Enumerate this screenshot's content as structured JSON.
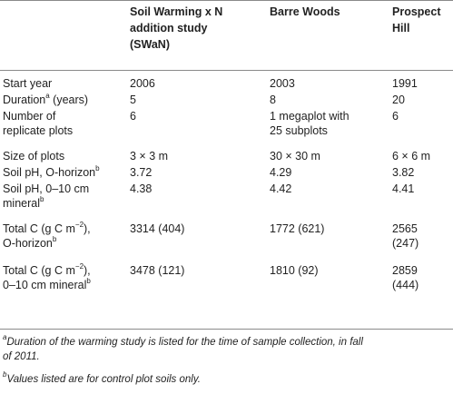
{
  "headers": {
    "col0": "",
    "col1_line1": "Soil Warming x N",
    "col1_line2": "addition study",
    "col1_line3": "(SWaN)",
    "col2": "Barre Woods",
    "col3_line1": "Prospect",
    "col3_line2": "Hill"
  },
  "rows": {
    "start_year": {
      "label": "Start year",
      "swan": "2006",
      "barre": "2003",
      "prospect": "1991"
    },
    "duration": {
      "label": "Duration",
      "label_sup": "a",
      "label_suffix": " (years)",
      "swan": "5",
      "barre": "8",
      "prospect": "20"
    },
    "replicates": {
      "label_line1": "Number of",
      "label_line2": "replicate plots",
      "swan": "6",
      "barre_line1": "1 megaplot with",
      "barre_line2": "25 subplots",
      "prospect": "6"
    },
    "plot_size": {
      "label": "Size of plots",
      "swan": "3 × 3 m",
      "barre": "30 × 30 m",
      "prospect": "6 × 6 m"
    },
    "ph_o": {
      "label": "Soil pH, O-horizon",
      "label_sup": "b",
      "swan": "3.72",
      "barre": "4.29",
      "prospect": "3.82"
    },
    "ph_mineral": {
      "label_line1": "Soil pH, 0–10 cm",
      "label_line2": "mineral",
      "label_sup": "b",
      "swan": "4.38",
      "barre": "4.42",
      "prospect": "4.41"
    },
    "c_o": {
      "label_line1_pre": "Total C (g C m",
      "label_line1_sup": "−2",
      "label_line1_post": "),",
      "label_line2": "O-horizon",
      "label_sup": "b",
      "swan": "3314 (404)",
      "barre": "1772 (621)",
      "prospect_line1": "2565",
      "prospect_line2": "(247)"
    },
    "c_mineral": {
      "label_line1_pre": "Total C (g C m",
      "label_line1_sup": "−2",
      "label_line1_post": "),",
      "label_line2": "0–10 cm mineral",
      "label_sup": "b",
      "swan": "3478 (121)",
      "barre": "1810 (92)",
      "prospect_line1": "2859",
      "prospect_line2": "(444)"
    }
  },
  "footnotes": {
    "a_marker": "a",
    "a_line1": "Duration of the warming study is listed for the time of sample collection, in fall",
    "a_line2": "of 2011.",
    "b_marker": "b",
    "b_text": "Values listed are for control plot soils only."
  }
}
